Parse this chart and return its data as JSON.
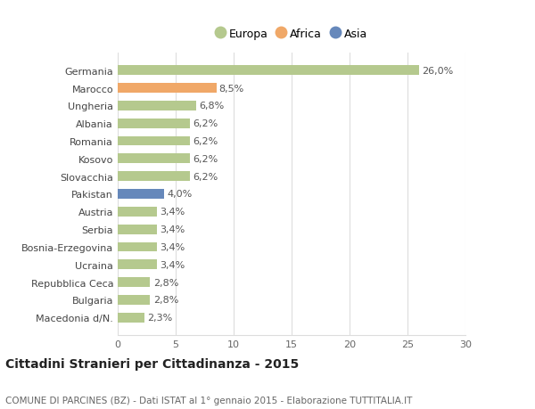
{
  "categories": [
    "Germania",
    "Marocco",
    "Ungheria",
    "Albania",
    "Romania",
    "Kosovo",
    "Slovacchia",
    "Pakistan",
    "Austria",
    "Serbia",
    "Bosnia-Erzegovina",
    "Ucraina",
    "Repubblica Ceca",
    "Bulgaria",
    "Macedonia d/N."
  ],
  "values": [
    26.0,
    8.5,
    6.8,
    6.2,
    6.2,
    6.2,
    6.2,
    4.0,
    3.4,
    3.4,
    3.4,
    3.4,
    2.8,
    2.8,
    2.3
  ],
  "labels": [
    "26,0%",
    "8,5%",
    "6,8%",
    "6,2%",
    "6,2%",
    "6,2%",
    "6,2%",
    "4,0%",
    "3,4%",
    "3,4%",
    "3,4%",
    "3,4%",
    "2,8%",
    "2,8%",
    "2,3%"
  ],
  "continents": [
    "Europa",
    "Africa",
    "Europa",
    "Europa",
    "Europa",
    "Europa",
    "Europa",
    "Asia",
    "Europa",
    "Europa",
    "Europa",
    "Europa",
    "Europa",
    "Europa",
    "Europa"
  ],
  "colors": {
    "Europa": "#b5c98e",
    "Africa": "#f0a868",
    "Asia": "#6688bb"
  },
  "legend_order": [
    "Europa",
    "Africa",
    "Asia"
  ],
  "xlim": [
    0,
    30
  ],
  "xticks": [
    0,
    5,
    10,
    15,
    20,
    25,
    30
  ],
  "background_color": "#ffffff",
  "grid_color": "#dddddd",
  "title": "Cittadini Stranieri per Cittadinanza - 2015",
  "subtitle": "COMUNE DI PARCINES (BZ) - Dati ISTAT al 1° gennaio 2015 - Elaborazione TUTTITALIA.IT",
  "title_fontsize": 10,
  "subtitle_fontsize": 7.5,
  "bar_height": 0.55,
  "label_fontsize": 8,
  "tick_fontsize": 8,
  "legend_fontsize": 9
}
